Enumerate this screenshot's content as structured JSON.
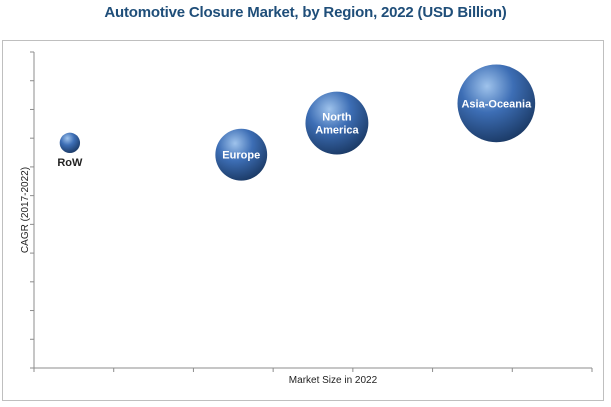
{
  "title": "Automotive Closure Market, by Region, 2022 (USD Billion)",
  "chart_data": {
    "type": "scatter",
    "subtype": "bubble",
    "title": "Automotive Closure Market, by Region, 2022 (USD Billion)",
    "xlabel": "Market Size in 2022",
    "ylabel": "CAGR (2017-2022)",
    "grid": false,
    "x_ticks": 7,
    "y_ticks": 11,
    "points": [
      {
        "label": "RoW",
        "label_lines": [
          "RoW"
        ],
        "label_position": "below",
        "x": 0.45,
        "y": 5.7,
        "size": 0.55
      },
      {
        "label": "Europe",
        "label_lines": [
          "Europe"
        ],
        "label_position": "center",
        "x": 2.6,
        "y": 5.4,
        "size": 1.4
      },
      {
        "label": "North America",
        "label_lines": [
          "North",
          "America"
        ],
        "label_position": "center",
        "x": 3.8,
        "y": 6.2,
        "size": 1.7
      },
      {
        "label": "Asia-Oceania",
        "label_lines": [
          "Asia-Oceania"
        ],
        "label_position": "center",
        "x": 5.8,
        "y": 6.7,
        "size": 2.1
      }
    ],
    "xlim": [
      0,
      7
    ],
    "ylim": [
      0,
      8
    ],
    "colors": {
      "bubble_light": "#9fc3ec",
      "bubble_mid": "#3d6eb5",
      "bubble_dark": "#1b3a66",
      "axis": "#8c8c8c"
    }
  }
}
